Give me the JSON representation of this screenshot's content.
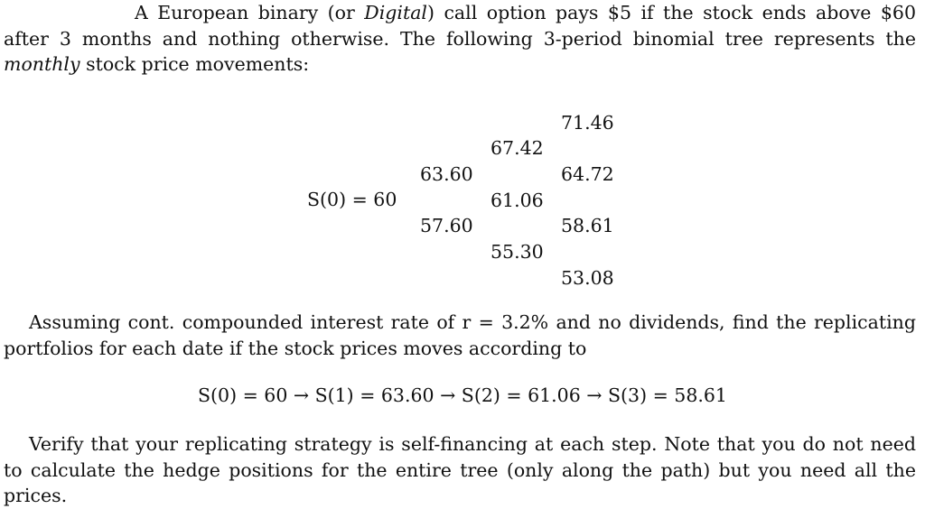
{
  "intro": {
    "part1": "A European binary (or ",
    "emph1": "Digital",
    "part2": ") call option pays $5 if the stock ends above $60 after 3 months and nothing otherwise. The following 3-period binomial tree represents the ",
    "emph2": "monthly",
    "part3": " stock price movements:"
  },
  "tree": {
    "s0_label": "S(0) = 60",
    "t1": [
      "63.60",
      "57.60"
    ],
    "t2": [
      "67.42",
      "61.06",
      "55.30"
    ],
    "t3": [
      "71.46",
      "64.72",
      "58.61",
      "53.08"
    ]
  },
  "question": {
    "text": "Assuming cont. compounded interest rate of r = 3.2% and no dividends, find the replicating portfolios for each date if the stock prices moves according to"
  },
  "path": {
    "text": "S(0) = 60 → S(1) = 63.60 → S(2) = 61.06 → S(3) = 58.61"
  },
  "verify": {
    "text": "Verify that your replicating strategy is self-financing at each step. Note that you do not need to calculate the hedge positions for the entire tree (only along the path) but you need all the prices."
  }
}
